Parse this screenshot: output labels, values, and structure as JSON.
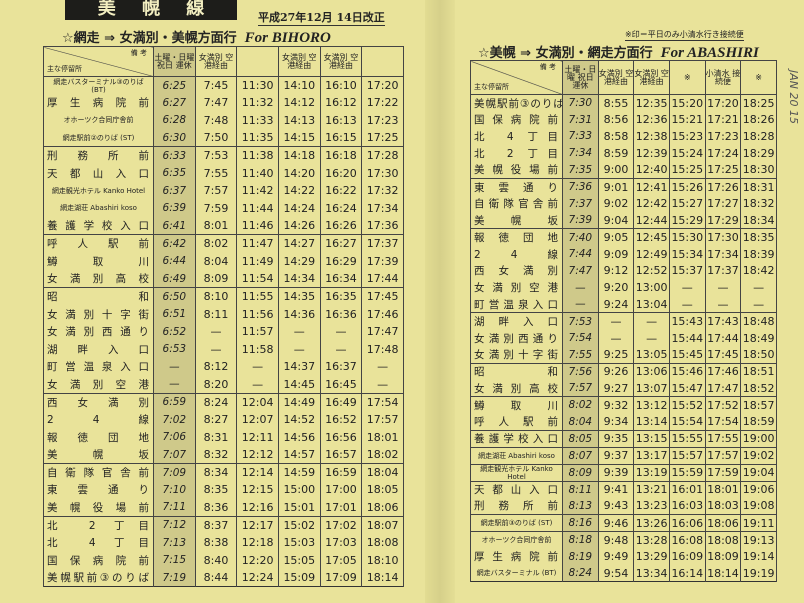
{
  "title": "美 幌 線",
  "revision": "平成27年12月 14日改正",
  "handwritten_note": "JAN 20 15",
  "left": {
    "heading": "☆網走 ⇒ 女満別・美幌方面行",
    "heading_en": "For BIHORO",
    "corner_top": "備 考",
    "corner_bottom": "主な停留所",
    "columns": [
      "土曜・日曜 祝日 運休",
      "女満別 空港経由",
      "",
      "女満別 空港経由",
      "女満別 空港経由",
      ""
    ],
    "rows": [
      [
        "網走バスターミナル③のりば(BT)",
        "6:25",
        "7:45",
        "11:30",
        "14:10",
        "16:10",
        "17:20"
      ],
      [
        "厚生病院前",
        "6:27",
        "7:47",
        "11:32",
        "14:12",
        "16:12",
        "17:22"
      ],
      [
        "オホーツク合同庁舎前",
        "6:28",
        "7:48",
        "11:33",
        "14:13",
        "16:13",
        "17:23"
      ],
      [
        "網走駅前②のりば (ST)",
        "6:30",
        "7:50",
        "11:35",
        "14:15",
        "16:15",
        "17:25"
      ],
      [
        "刑務所前",
        "6:33",
        "7:53",
        "11:38",
        "14:18",
        "16:18",
        "17:28"
      ],
      [
        "天都山入口",
        "6:35",
        "7:55",
        "11:40",
        "14:20",
        "16:20",
        "17:30"
      ],
      [
        "網走観光ホテル Kanko Hotel",
        "6:37",
        "7:57",
        "11:42",
        "14:22",
        "16:22",
        "17:32"
      ],
      [
        "網走湖荘 Abashiri koso",
        "6:39",
        "7:59",
        "11:44",
        "14:24",
        "16:24",
        "17:34"
      ],
      [
        "養護学校入口",
        "6:41",
        "8:01",
        "11:46",
        "14:26",
        "16:26",
        "17:36"
      ],
      [
        "呼人駅前",
        "6:42",
        "8:02",
        "11:47",
        "14:27",
        "16:27",
        "17:37"
      ],
      [
        "鱒取川",
        "6:44",
        "8:04",
        "11:49",
        "14:29",
        "16:29",
        "17:39"
      ],
      [
        "女満別高校",
        "6:49",
        "8:09",
        "11:54",
        "14:34",
        "16:34",
        "17:44"
      ],
      [
        "昭和",
        "6:50",
        "8:10",
        "11:55",
        "14:35",
        "16:35",
        "17:45"
      ],
      [
        "女満別十字街",
        "6:51",
        "8:11",
        "11:56",
        "14:36",
        "16:36",
        "17:46"
      ],
      [
        "女満別西通り",
        "6:52",
        "—",
        "11:57",
        "—",
        "—",
        "17:47"
      ],
      [
        "湖畔入口",
        "6:53",
        "—",
        "11:58",
        "—",
        "—",
        "17:48"
      ],
      [
        "町営温泉入口",
        "—",
        "8:12",
        "—",
        "14:37",
        "16:37",
        "—"
      ],
      [
        "女満別空港",
        "—",
        "8:20",
        "—",
        "14:45",
        "16:45",
        "—"
      ],
      [
        "西女満別",
        "6:59",
        "8:24",
        "12:04",
        "14:49",
        "16:49",
        "17:54"
      ],
      [
        "2 4 線",
        "7:02",
        "8:27",
        "12:07",
        "14:52",
        "16:52",
        "17:57"
      ],
      [
        "報徳団地",
        "7:06",
        "8:31",
        "12:11",
        "14:56",
        "16:56",
        "18:01"
      ],
      [
        "美幌坂",
        "7:07",
        "8:32",
        "12:12",
        "14:57",
        "16:57",
        "18:02"
      ],
      [
        "自衛隊官舎前",
        "7:09",
        "8:34",
        "12:14",
        "14:59",
        "16:59",
        "18:04"
      ],
      [
        "東雲通り",
        "7:10",
        "8:35",
        "12:15",
        "15:00",
        "17:00",
        "18:05"
      ],
      [
        "美幌役場前",
        "7:11",
        "8:36",
        "12:16",
        "15:01",
        "17:01",
        "18:06"
      ],
      [
        "北 2 丁目",
        "7:12",
        "8:37",
        "12:17",
        "15:02",
        "17:02",
        "18:07"
      ],
      [
        "北 4 丁目",
        "7:13",
        "8:38",
        "12:18",
        "15:03",
        "17:03",
        "18:08"
      ],
      [
        "国保病院前",
        "7:15",
        "8:40",
        "12:20",
        "15:05",
        "17:05",
        "18:10"
      ],
      [
        "美幌駅前③のりば",
        "7:19",
        "8:44",
        "12:24",
        "15:09",
        "17:09",
        "18:14"
      ]
    ]
  },
  "right": {
    "note": "※印＝平日のみ小清水行き接続便",
    "heading": "☆美幌 ⇒ 女満別・網走方面行",
    "heading_en": "For ABASHIRI",
    "corner_top": "備 考",
    "corner_bottom": "主な停留所",
    "columns": [
      "土曜・日曜 祝日 運休",
      "女満別 空港経由",
      "女満別 空港経由",
      "※",
      "小清水 接続便",
      "※"
    ],
    "rows": [
      [
        "美幌駅前③のりば",
        "7:30",
        "8:55",
        "12:35",
        "15:20",
        "17:20",
        "18:25"
      ],
      [
        "国保病院前",
        "7:31",
        "8:56",
        "12:36",
        "15:21",
        "17:21",
        "18:26"
      ],
      [
        "北 4 丁目",
        "7:33",
        "8:58",
        "12:38",
        "15:23",
        "17:23",
        "18:28"
      ],
      [
        "北 2 丁目",
        "7:34",
        "8:59",
        "12:39",
        "15:24",
        "17:24",
        "18:29"
      ],
      [
        "美幌役場前",
        "7:35",
        "9:00",
        "12:40",
        "15:25",
        "17:25",
        "18:30"
      ],
      [
        "東雲通り",
        "7:36",
        "9:01",
        "12:41",
        "15:26",
        "17:26",
        "18:31"
      ],
      [
        "自衛隊官舎前",
        "7:37",
        "9:02",
        "12:42",
        "15:27",
        "17:27",
        "18:32"
      ],
      [
        "美幌坂",
        "7:39",
        "9:04",
        "12:44",
        "15:29",
        "17:29",
        "18:34"
      ],
      [
        "報徳団地",
        "7:40",
        "9:05",
        "12:45",
        "15:30",
        "17:30",
        "18:35"
      ],
      [
        "2 4 線",
        "7:44",
        "9:09",
        "12:49",
        "15:34",
        "17:34",
        "18:39"
      ],
      [
        "西女満別",
        "7:47",
        "9:12",
        "12:52",
        "15:37",
        "17:37",
        "18:42"
      ],
      [
        "女満別空港",
        "—",
        "9:20",
        "13:00",
        "—",
        "—",
        "—"
      ],
      [
        "町営温泉入口",
        "—",
        "9:24",
        "13:04",
        "—",
        "—",
        "—"
      ],
      [
        "湖畔入口",
        "7:53",
        "—",
        "—",
        "15:43",
        "17:43",
        "18:48"
      ],
      [
        "女満別西通り",
        "7:54",
        "—",
        "—",
        "15:44",
        "17:44",
        "18:49"
      ],
      [
        "女満別十字街",
        "7:55",
        "9:25",
        "13:05",
        "15:45",
        "17:45",
        "18:50"
      ],
      [
        "昭和",
        "7:56",
        "9:26",
        "13:06",
        "15:46",
        "17:46",
        "18:51"
      ],
      [
        "女満別高校",
        "7:57",
        "9:27",
        "13:07",
        "15:47",
        "17:47",
        "18:52"
      ],
      [
        "鱒取川",
        "8:02",
        "9:32",
        "13:12",
        "15:52",
        "17:52",
        "18:57"
      ],
      [
        "呼人駅前",
        "8:04",
        "9:34",
        "13:14",
        "15:54",
        "17:54",
        "18:59"
      ],
      [
        "養護学校入口",
        "8:05",
        "9:35",
        "13:15",
        "15:55",
        "17:55",
        "19:00"
      ],
      [
        "網走湖荘 Abashiri koso",
        "8:07",
        "9:37",
        "13:17",
        "15:57",
        "17:57",
        "19:02"
      ],
      [
        "網走観光ホテル Kanko Hotel",
        "8:09",
        "9:39",
        "13:19",
        "15:59",
        "17:59",
        "19:04"
      ],
      [
        "天都山入口",
        "8:11",
        "9:41",
        "13:21",
        "16:01",
        "18:01",
        "19:06"
      ],
      [
        "刑務所前",
        "8:13",
        "9:43",
        "13:23",
        "16:03",
        "18:03",
        "19:08"
      ],
      [
        "網走駅前③のりば (ST)",
        "8:16",
        "9:46",
        "13:26",
        "16:06",
        "18:06",
        "19:11"
      ],
      [
        "オホーツク合同庁舎前",
        "8:18",
        "9:48",
        "13:28",
        "16:08",
        "18:08",
        "19:13"
      ],
      [
        "厚生病院前",
        "8:19",
        "9:49",
        "13:29",
        "16:09",
        "18:09",
        "19:14"
      ],
      [
        "網走バスターミナル (BT)",
        "8:24",
        "9:54",
        "13:34",
        "16:14",
        "18:14",
        "19:19"
      ]
    ]
  }
}
